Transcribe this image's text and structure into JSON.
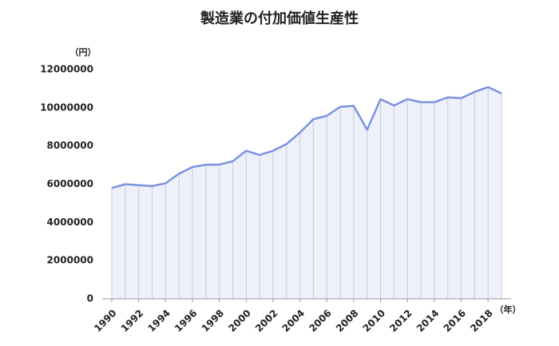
{
  "chart_data": {
    "type": "area",
    "title": "製造業の付加価値生産性",
    "y_label": "（円）",
    "x_label": "（年）",
    "x": [
      1990,
      1991,
      1992,
      1993,
      1994,
      1995,
      1996,
      1997,
      1998,
      1999,
      2000,
      2001,
      2002,
      2003,
      2004,
      2005,
      2006,
      2007,
      2008,
      2009,
      2010,
      2011,
      2012,
      2013,
      2014,
      2015,
      2016,
      2017,
      2018,
      2019
    ],
    "values": [
      5800000,
      6000000,
      5950000,
      5900000,
      6050000,
      6550000,
      6900000,
      7020000,
      7030000,
      7200000,
      7750000,
      7530000,
      7750000,
      8100000,
      8700000,
      9400000,
      9580000,
      10050000,
      10100000,
      8850000,
      10450000,
      10120000,
      10450000,
      10290000,
      10290000,
      10540000,
      10500000,
      10830000,
      11080000,
      10750000
    ],
    "color": "#7b93e0",
    "fill": "#eef0fb",
    "xlim": [
      1990,
      2019
    ],
    "xticks": [
      1990,
      1992,
      1994,
      1996,
      1998,
      2000,
      2002,
      2004,
      2006,
      2008,
      2010,
      2012,
      2014,
      2016,
      2018
    ],
    "ylim": [
      0,
      12000000
    ],
    "yticks": [
      0,
      2000000,
      4000000,
      6000000,
      8000000,
      10000000,
      12000000
    ]
  }
}
